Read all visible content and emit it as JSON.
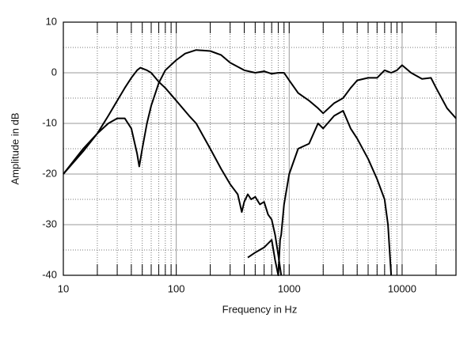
{
  "chart_data": {
    "type": "line",
    "xlabel": "Frequency in Hz",
    "ylabel": "Amplitude in dB",
    "xscale": "log",
    "grid": true,
    "xlim": [
      10,
      30000
    ],
    "ylim": [
      -40,
      10
    ],
    "xticks": [
      10,
      100,
      1000,
      10000
    ],
    "yticks": [
      -40,
      -30,
      -20,
      -10,
      0,
      10
    ],
    "xminor_ticks": [
      20,
      30,
      40,
      50,
      60,
      70,
      80,
      90,
      200,
      300,
      400,
      500,
      600,
      700,
      800,
      900,
      2000,
      3000,
      4000,
      5000,
      6000,
      7000,
      8000,
      9000,
      20000
    ],
    "yminor_ticks": [
      -35,
      -25,
      -15,
      -5,
      5
    ],
    "series": [
      {
        "color": "#000000",
        "x": [
          10,
          15,
          20,
          25,
          30,
          35,
          40,
          45,
          48,
          55,
          60,
          70,
          80,
          100,
          130,
          150,
          200,
          250,
          300,
          350,
          380,
          400,
          430,
          460,
          500,
          550,
          600,
          650,
          700,
          750,
          800,
          850
        ],
        "values": [
          -20,
          -15.5,
          -12,
          -8.5,
          -5.5,
          -3,
          -1,
          0.5,
          1,
          0.5,
          0,
          -1.8,
          -3,
          -5.5,
          -8.5,
          -10,
          -15,
          -19,
          -22,
          -24,
          -27.5,
          -25.5,
          -24,
          -25,
          -24.5,
          -26,
          -25.5,
          -28,
          -29,
          -32,
          -36,
          -40
        ]
      },
      {
        "color": "#000000",
        "x": [
          10,
          15,
          20,
          25,
          30,
          35,
          40,
          45,
          47,
          50,
          55,
          60,
          70,
          80,
          100,
          120,
          150,
          200,
          250,
          300,
          400,
          500,
          600,
          700,
          800,
          900,
          1000,
          1200,
          1500,
          1800,
          2000,
          2500,
          3000,
          3500,
          4000,
          5000,
          6000,
          7000,
          8000,
          9000,
          10000,
          12000,
          15000,
          18000,
          20000,
          25000,
          30000
        ],
        "values": [
          -20,
          -15,
          -12,
          -10,
          -9,
          -9,
          -11,
          -16,
          -18.5,
          -15,
          -10,
          -6.5,
          -2,
          0.5,
          2.5,
          3.8,
          4.5,
          4.3,
          3.5,
          2,
          0.5,
          0,
          0.3,
          -0.2,
          0,
          0,
          -1.5,
          -4,
          -5.5,
          -7,
          -8,
          -6,
          -5,
          -3,
          -1.5,
          -1,
          -1,
          0.5,
          0,
          0.5,
          1.5,
          0,
          -1.2,
          -1,
          -3,
          -7,
          -9
        ]
      },
      {
        "color": "#000000",
        "x": [
          430,
          500,
          600,
          700,
          750,
          800,
          830,
          850,
          900,
          1000,
          1200,
          1500,
          1800,
          2000,
          2500,
          3000,
          3500,
          4000,
          5000,
          6000,
          7000,
          7500,
          8000
        ],
        "values": [
          -36.5,
          -35.5,
          -34.5,
          -33,
          -37,
          -40,
          -33,
          -32,
          -26,
          -20,
          -15,
          -14,
          -10,
          -11,
          -8.5,
          -7.5,
          -11,
          -13,
          -17,
          -21,
          -25,
          -30,
          -40
        ]
      }
    ]
  }
}
